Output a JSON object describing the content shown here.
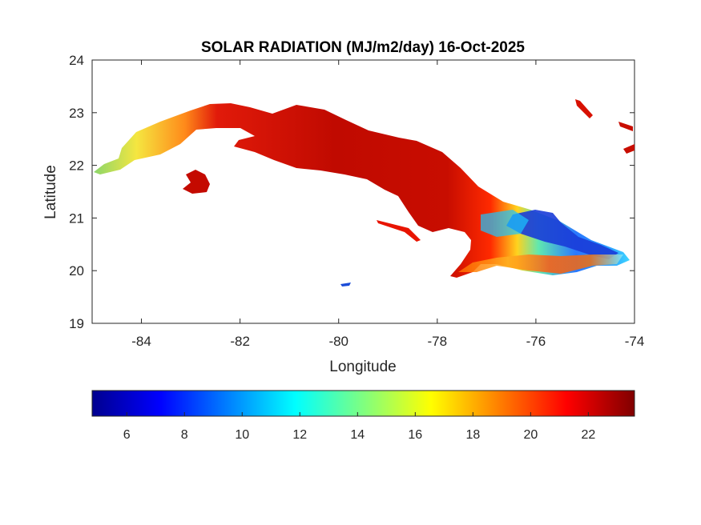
{
  "chart_data": {
    "type": "heatmap",
    "title": "SOLAR RADIATION (MJ/m2/day) 16-Oct-2025",
    "xlabel": "Longitude",
    "ylabel": "Latitude",
    "xlim": [
      -85,
      -74
    ],
    "ylim": [
      19,
      24
    ],
    "xticks": [
      -84,
      -82,
      -80,
      -78,
      -76,
      -74
    ],
    "yticks": [
      19,
      20,
      21,
      22,
      23,
      24
    ],
    "colorbar": {
      "colormap": "jet",
      "range": [
        4.8,
        23.6
      ],
      "ticks": [
        6,
        8,
        10,
        12,
        14,
        16,
        18,
        20,
        22
      ]
    },
    "regions": [
      {
        "name": "western Cuba",
        "lon_range": [
          -85,
          -82.5
        ],
        "approx_value": 16
      },
      {
        "name": "central-west Cuba",
        "lon_range": [
          -82.5,
          -78.5
        ],
        "approx_value": 22
      },
      {
        "name": "central Cuba",
        "lon_range": [
          -78.5,
          -77.2
        ],
        "approx_value": 21
      },
      {
        "name": "eastern Cuba lowlands",
        "lon_range": [
          -77.2,
          -75.5
        ],
        "approx_value": 14
      },
      {
        "name": "eastern Cuba north coast",
        "lon_range": [
          -76.5,
          -74.2
        ],
        "approx_value": 8
      },
      {
        "name": "Isla de la Juventud",
        "lon_range": [
          -83.2,
          -82.5
        ],
        "approx_value": 22
      }
    ]
  }
}
